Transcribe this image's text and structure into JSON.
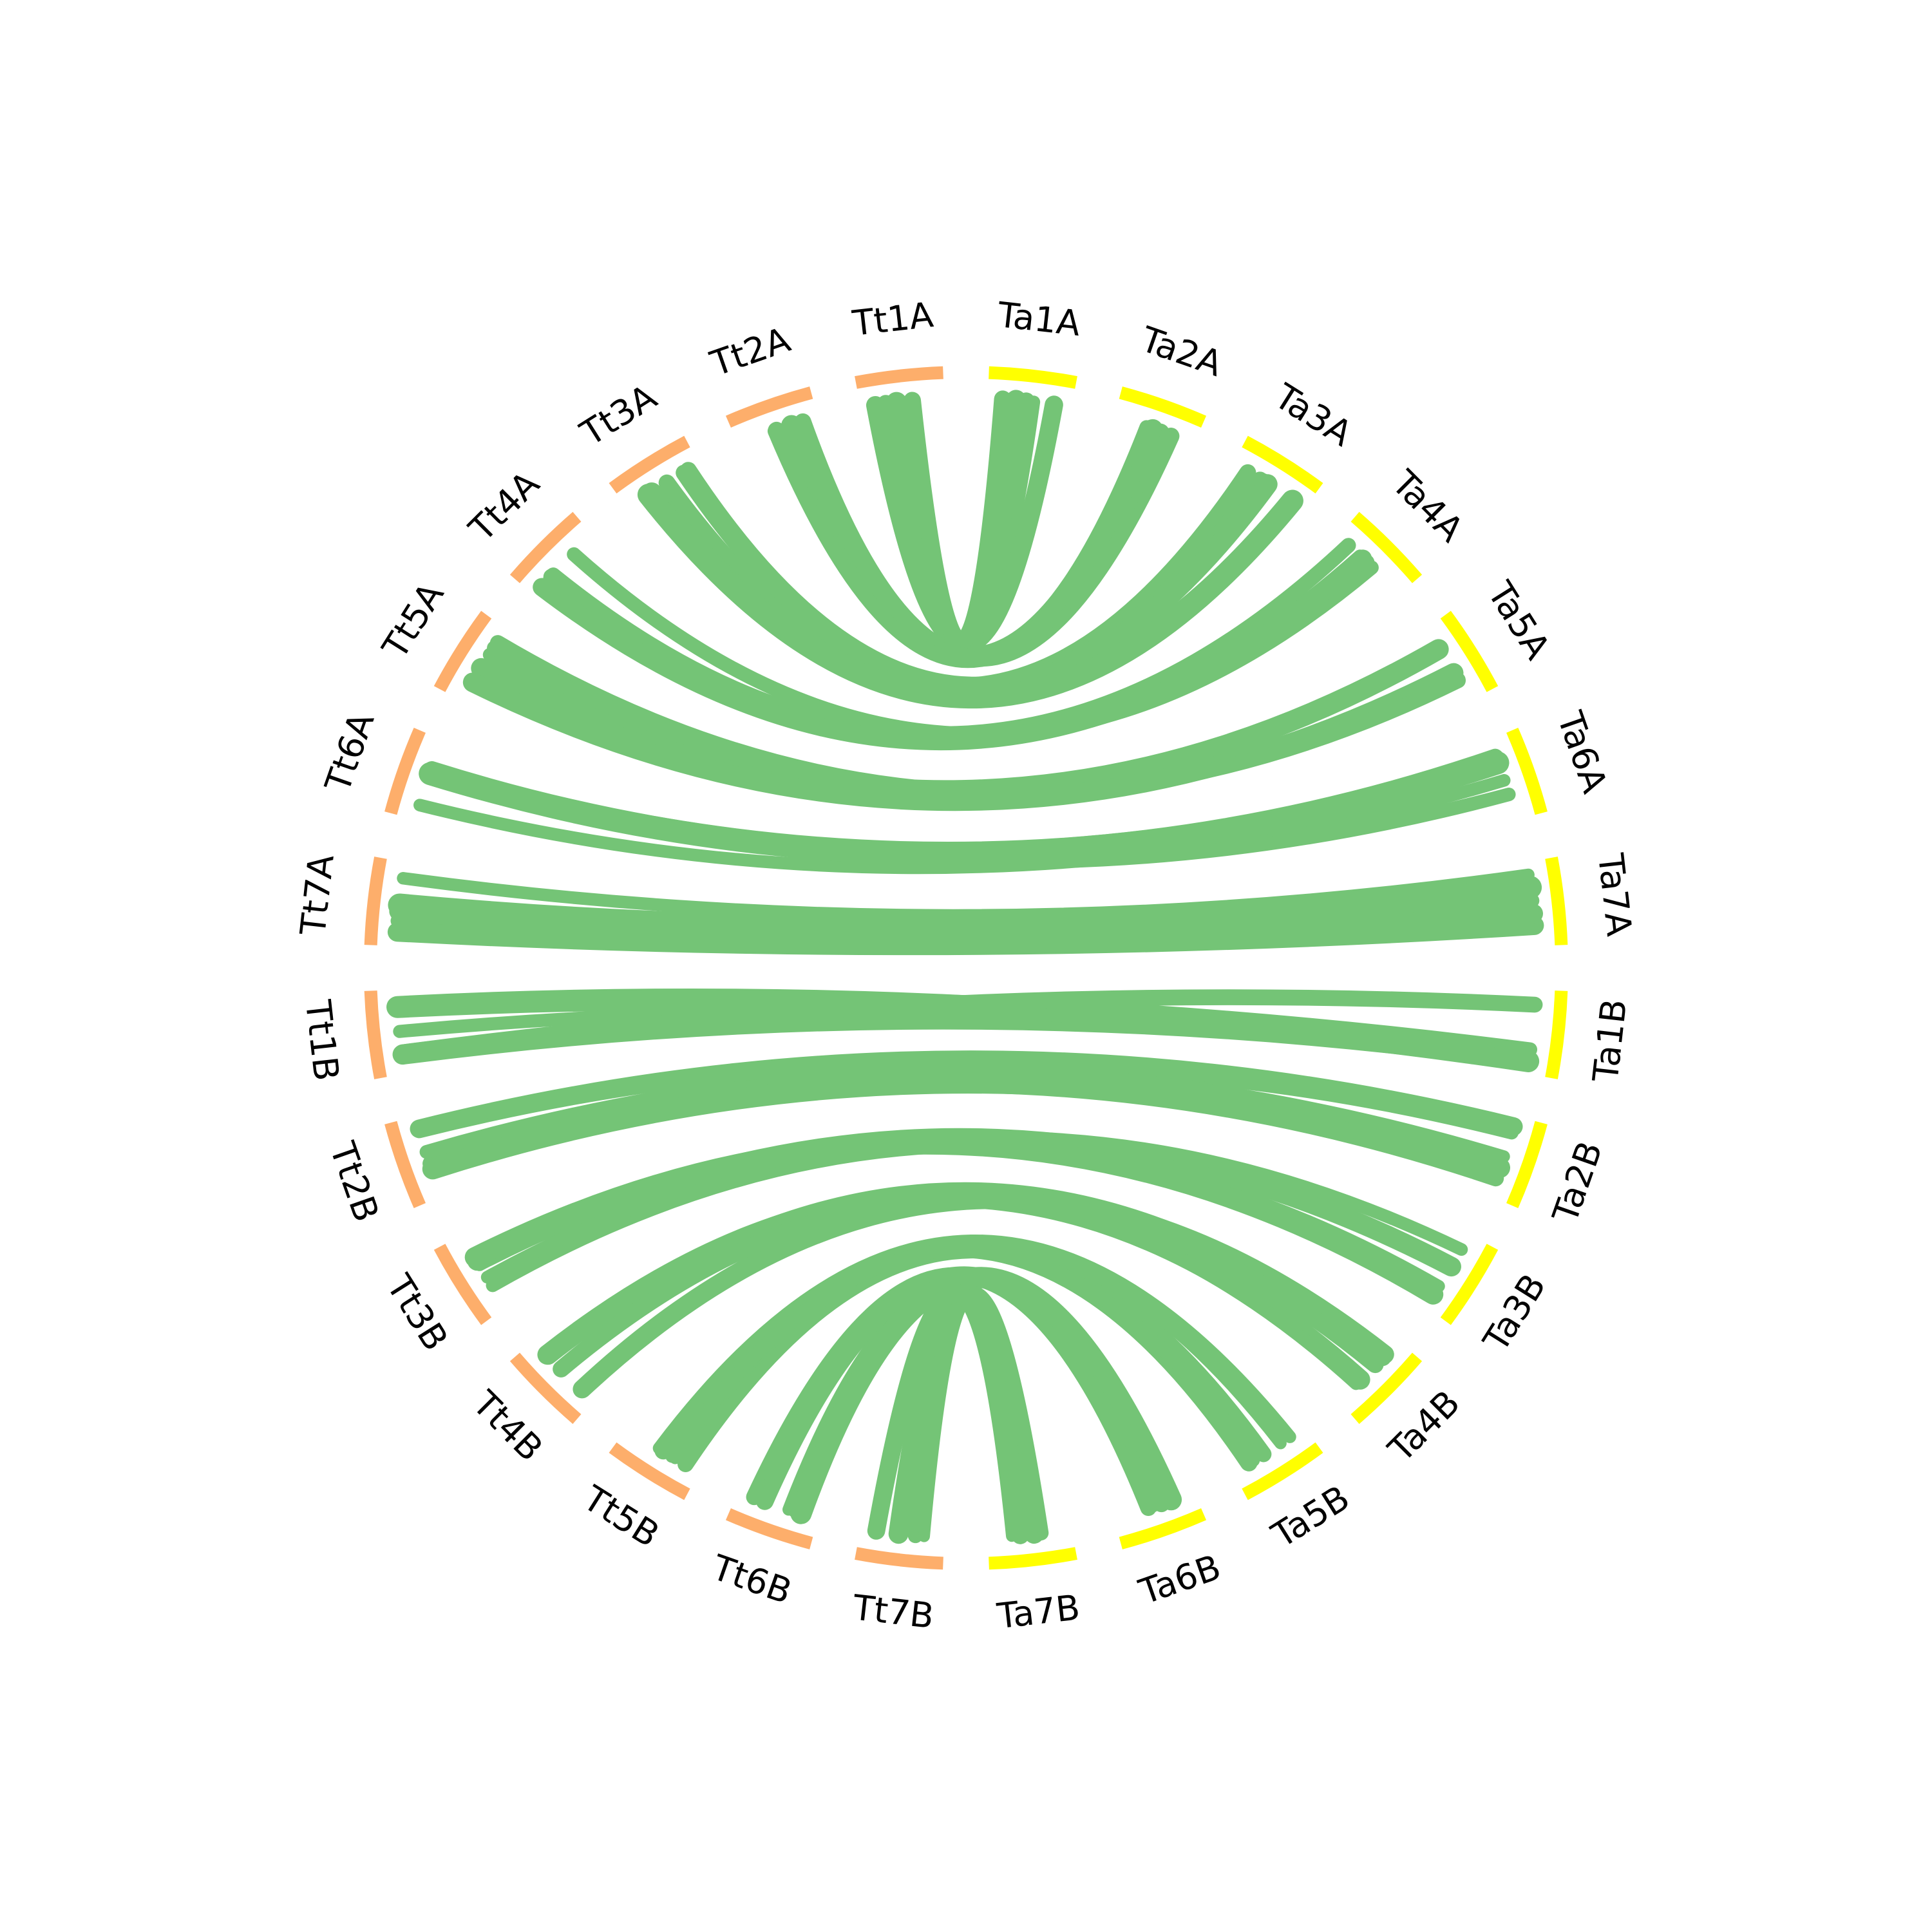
{
  "colors": {
    "tt_group": "#FDAE6B",
    "ta_group": "#FFFF00",
    "links": "#74C476"
  },
  "chromosomes": [
    {
      "id": "Tt1A",
      "label": "Tt1A",
      "group": "tt"
    },
    {
      "id": "Tt2A",
      "label": "Tt2A",
      "group": "tt"
    },
    {
      "id": "Tt3A",
      "label": "Tt3A",
      "group": "tt"
    },
    {
      "id": "Tt4A",
      "label": "Tt4A",
      "group": "tt"
    },
    {
      "id": "Tt5A",
      "label": "Tt5A",
      "group": "tt"
    },
    {
      "id": "Tt6A",
      "label": "Tt6A",
      "group": "tt"
    },
    {
      "id": "Tt7A",
      "label": "Tt7A",
      "group": "tt"
    },
    {
      "id": "Tt1B",
      "label": "Tt1B",
      "group": "tt"
    },
    {
      "id": "Tt2B",
      "label": "Tt2B",
      "group": "tt"
    },
    {
      "id": "Tt3B",
      "label": "Tt3B",
      "group": "tt"
    },
    {
      "id": "Tt4B",
      "label": "Tt4B",
      "group": "tt"
    },
    {
      "id": "Tt5B",
      "label": "Tt5B",
      "group": "tt"
    },
    {
      "id": "Tt6B",
      "label": "Tt6B",
      "group": "tt"
    },
    {
      "id": "Tt7B",
      "label": "Tt7B",
      "group": "tt"
    },
    {
      "id": "Ta7B",
      "label": "Ta7B",
      "group": "ta"
    },
    {
      "id": "Ta6B",
      "label": "Ta6B",
      "group": "ta"
    },
    {
      "id": "Ta5B",
      "label": "Ta5B",
      "group": "ta"
    },
    {
      "id": "Ta4B",
      "label": "Ta4B",
      "group": "ta"
    },
    {
      "id": "Ta3B",
      "label": "Ta3B",
      "group": "ta"
    },
    {
      "id": "Ta2B",
      "label": "Ta2B",
      "group": "ta"
    },
    {
      "id": "Ta1B",
      "label": "Ta1B",
      "group": "ta"
    },
    {
      "id": "Ta7A",
      "label": "Ta7A",
      "group": "ta"
    },
    {
      "id": "Ta6A",
      "label": "Ta6A",
      "group": "ta"
    },
    {
      "id": "Ta5A",
      "label": "Ta5A",
      "group": "ta"
    },
    {
      "id": "Ta4A",
      "label": "Ta4A",
      "group": "ta"
    },
    {
      "id": "Ta3A",
      "label": "Ta3A",
      "group": "ta"
    },
    {
      "id": "Ta2A",
      "label": "Ta2A",
      "group": "ta"
    },
    {
      "id": "Ta1A",
      "label": "Ta1A",
      "group": "ta"
    }
  ],
  "links": [
    {
      "source": "Tt1A",
      "target": "Ta1A"
    },
    {
      "source": "Tt2A",
      "target": "Ta2A"
    },
    {
      "source": "Tt3A",
      "target": "Ta3A"
    },
    {
      "source": "Tt4A",
      "target": "Ta4A"
    },
    {
      "source": "Tt5A",
      "target": "Ta5A"
    },
    {
      "source": "Tt6A",
      "target": "Ta6A"
    },
    {
      "source": "Tt7A",
      "target": "Ta7A"
    },
    {
      "source": "Tt1B",
      "target": "Ta1B"
    },
    {
      "source": "Tt2B",
      "target": "Ta2B"
    },
    {
      "source": "Tt3B",
      "target": "Ta3B"
    },
    {
      "source": "Tt4B",
      "target": "Ta4B"
    },
    {
      "source": "Tt5B",
      "target": "Ta5B"
    },
    {
      "source": "Tt6B",
      "target": "Ta6B"
    },
    {
      "source": "Tt7B",
      "target": "Ta7B"
    }
  ]
}
